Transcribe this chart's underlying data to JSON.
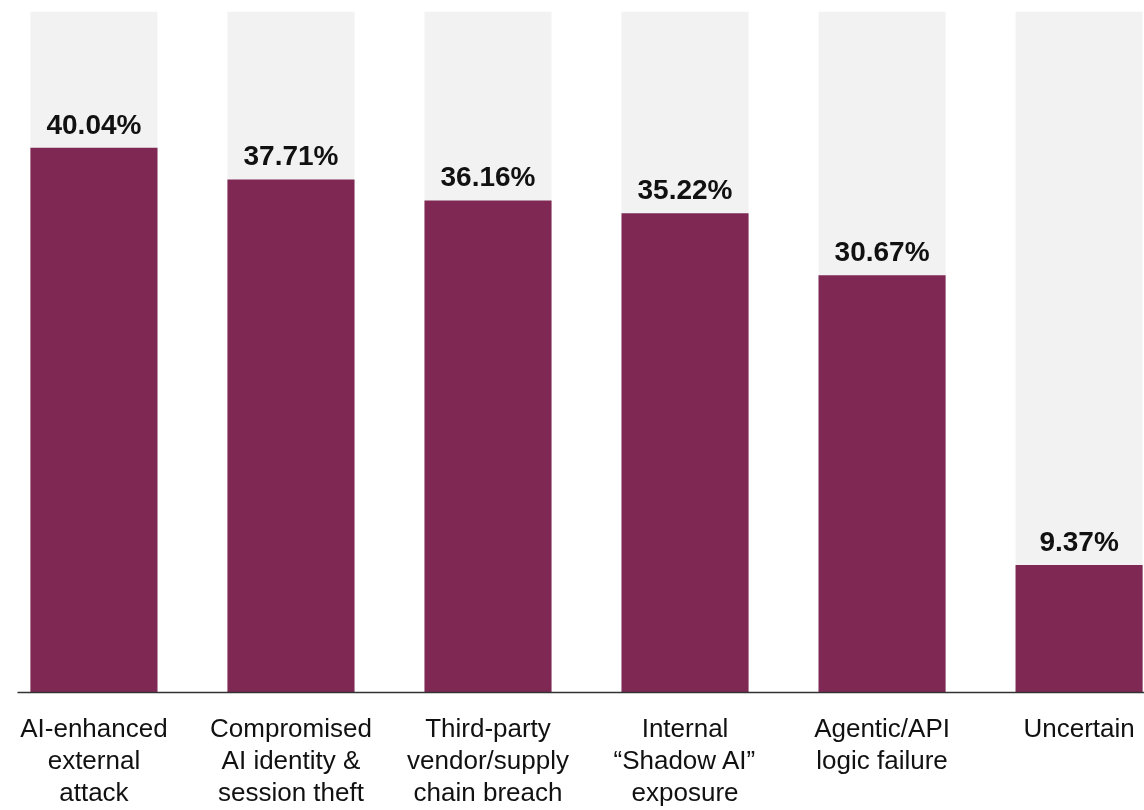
{
  "chart_data": {
    "type": "bar",
    "categories": [
      "AI-enhanced\nexternal\nattack",
      "Compromised\nAI identity &\nsession theft",
      "Third-party\nvendor/supply\nchain breach",
      "Internal\n“Shadow AI”\nexposure",
      "Agentic/API\nlogic failure",
      "Uncertain"
    ],
    "values": [
      40.04,
      37.71,
      36.16,
      35.22,
      30.67,
      9.37
    ],
    "value_labels": [
      "40.04%",
      "37.71%",
      "36.16%",
      "35.22%",
      "30.67%",
      "9.37%"
    ],
    "color": "#7f2854",
    "tick_labels": "x",
    "bands": [
      {
        "axis": "x",
        "from": "AI-enhanced\nexternal\nattack",
        "to": "AI-enhanced\nexternal\nattack",
        "color": "#f2f2f2"
      },
      {
        "axis": "x",
        "from": "Compromised\nAI identity &\nsession theft",
        "to": "Compromised\nAI identity &\nsession theft",
        "color": "#f2f2f2"
      },
      {
        "axis": "x",
        "from": "Third-party\nvendor/supply\nchain breach",
        "to": "Third-party\nvendor/supply\nchain breach",
        "color": "#f2f2f2"
      },
      {
        "axis": "x",
        "from": "Internal\n“Shadow AI”\nexposure",
        "to": "Internal\n“Shadow AI”\nexposure",
        "color": "#f2f2f2"
      },
      {
        "axis": "x",
        "from": "Agentic/API\nlogic failure",
        "to": "Agentic/API\nlogic failure",
        "color": "#f2f2f2"
      },
      {
        "axis": "x",
        "from": "Uncertain",
        "to": "Uncertain",
        "color": "#f2f2f2"
      }
    ]
  }
}
